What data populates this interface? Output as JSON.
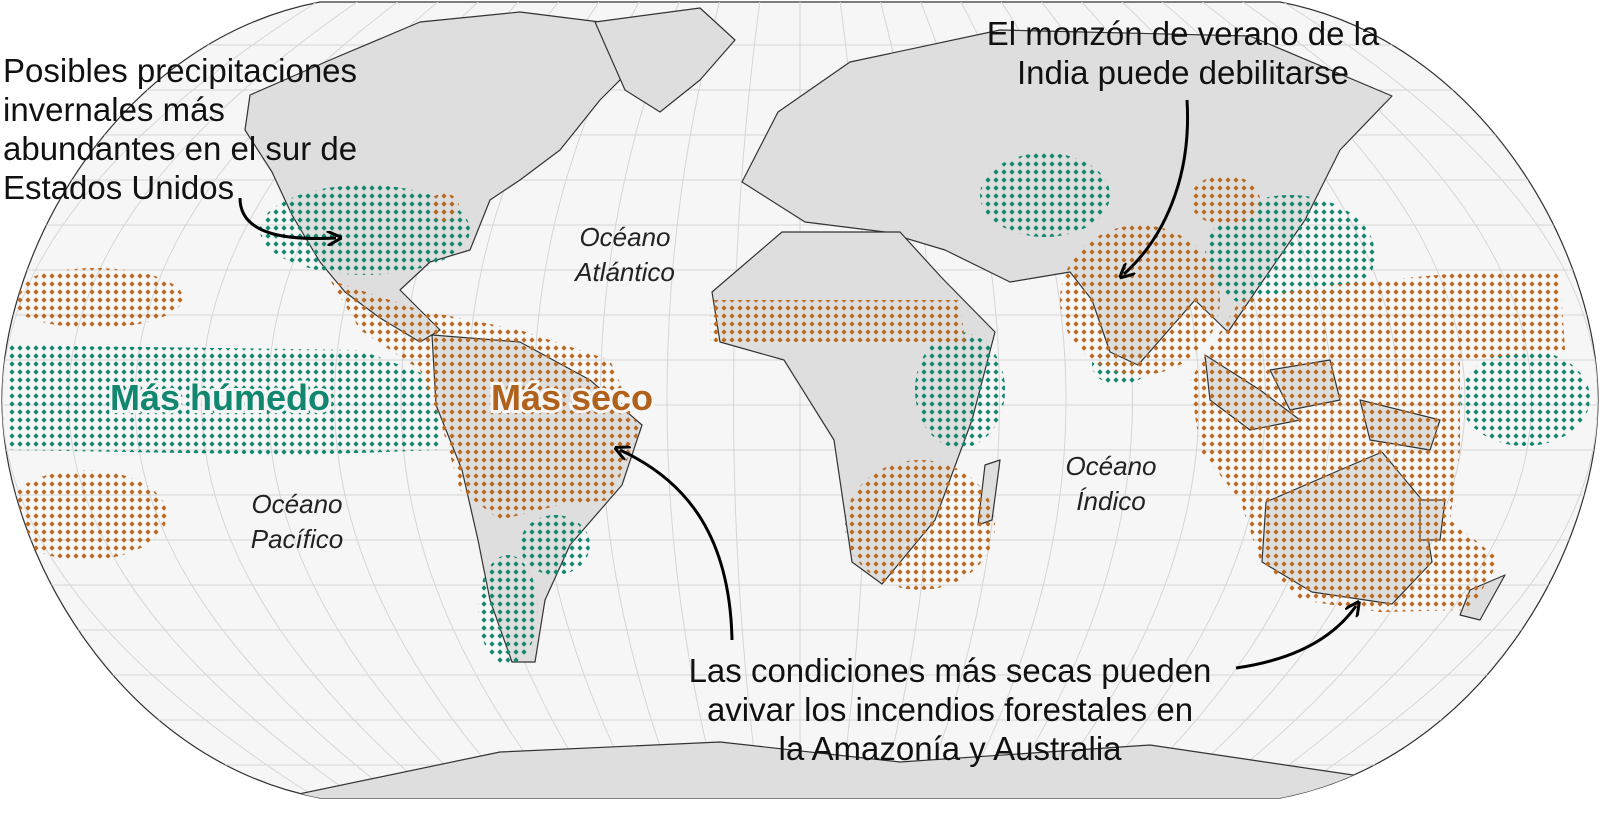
{
  "annotations": [
    {
      "lines": [
        "Posibles precipitaciones",
        "invernales más",
        "abundantes en el sur de",
        "Estados Unidos"
      ]
    },
    {
      "lines": [
        "El monzón de verano de la",
        "India puede debilitarse"
      ]
    },
    {
      "lines": [
        "Las condiciones más secas pueden",
        "avivar los incendios forestales en",
        "la Amazonía y Australia"
      ]
    }
  ],
  "oceans": [
    {
      "lines": [
        "Océano",
        "Atlántico"
      ]
    },
    {
      "lines": [
        "Océano",
        "Pacífico"
      ]
    },
    {
      "lines": [
        "Océano",
        "Índico"
      ]
    }
  ],
  "legend": {
    "wetter": "Más húmedo",
    "drier": "Más seco"
  }
}
